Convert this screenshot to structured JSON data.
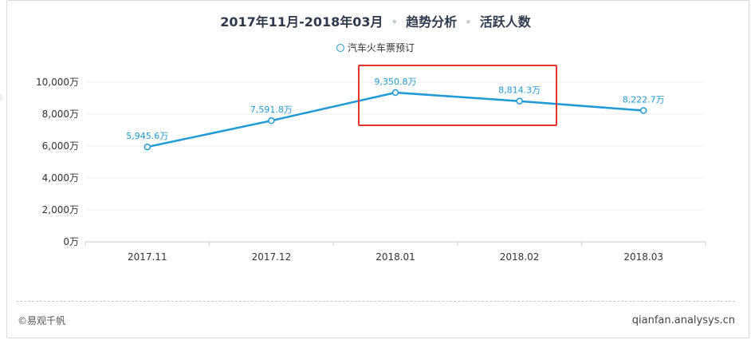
{
  "title": {
    "date_range": "2017年11月-2018年03月",
    "segment1": "趋势分析",
    "segment2": "活跃人数",
    "separator": "•"
  },
  "chart_data": {
    "type": "line",
    "categories": [
      "2017.11",
      "2017.12",
      "2018.01",
      "2018.02",
      "2018.03"
    ],
    "series": [
      {
        "name": "汽车火车票预订",
        "values": [
          5945.6,
          7591.8,
          9350.8,
          8814.3,
          8222.7
        ],
        "labels": [
          "5,945.6万",
          "7,591.8万",
          "9,350.8万",
          "8,814.3万",
          "8,222.7万"
        ],
        "color": "#1e9ad6"
      }
    ],
    "yticks": [
      0,
      2000,
      4000,
      6000,
      8000,
      10000
    ],
    "ytick_labels": [
      "0万",
      "2,000万",
      "4,000万",
      "6,000万",
      "8,000万",
      "10,000万"
    ],
    "ylim": [
      0,
      10000
    ],
    "grid": true,
    "legend_position": "top-center",
    "highlight": {
      "categories": [
        "2018.01",
        "2018.02"
      ],
      "color": "#e8322c"
    }
  },
  "footer": {
    "copyright": "©易观千帆",
    "site": "qianfan.analysys.cn"
  }
}
